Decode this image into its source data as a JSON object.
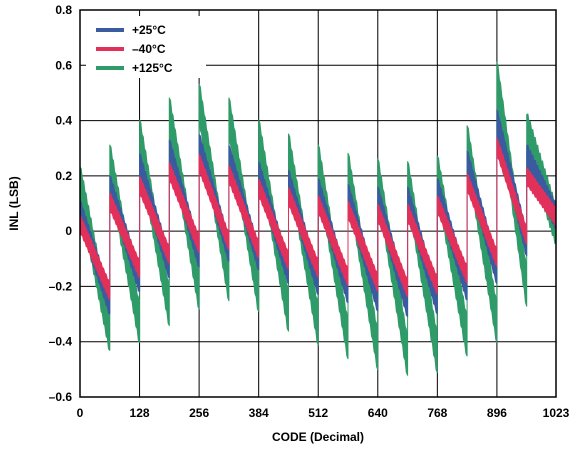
{
  "chart_data": {
    "type": "line",
    "title": "",
    "xlabel": "CODE (Decimal)",
    "ylabel": "INL (LSB)",
    "xlim": [
      0,
      1023
    ],
    "ylim": [
      -0.6,
      0.8
    ],
    "x_ticks": [
      0,
      128,
      256,
      384,
      512,
      640,
      768,
      896,
      1023
    ],
    "y_ticks": [
      -0.6,
      -0.4,
      -0.2,
      0,
      0.2,
      0.4,
      0.6,
      0.8
    ],
    "y_tick_labels": [
      "–0.6",
      "–0.4",
      "–0.2",
      "0",
      "0.2",
      "0.4",
      "0.6",
      "0.8"
    ],
    "grid": true,
    "legend_position": "top-left",
    "segment_codes": [
      0,
      64,
      128,
      192,
      256,
      320,
      384,
      448,
      512,
      576,
      640,
      704,
      768,
      832,
      896,
      960,
      1023
    ],
    "series": [
      {
        "name": "+125°C",
        "color": "#2e9b68",
        "band": 0.07,
        "tops": [
          0.17,
          0.25,
          0.34,
          0.42,
          0.47,
          0.42,
          0.34,
          0.29,
          0.25,
          0.22,
          0.2,
          0.19,
          0.21,
          0.32,
          0.55,
          0.36
        ],
        "bottoms": [
          -0.37,
          -0.34,
          -0.28,
          -0.22,
          -0.19,
          -0.23,
          -0.3,
          -0.35,
          -0.4,
          -0.44,
          -0.46,
          -0.45,
          -0.39,
          -0.34,
          -0.21,
          0.02
        ]
      },
      {
        "name": "+25°C",
        "color": "#3a5ba0",
        "band": 0.045,
        "tops": [
          0.07,
          0.16,
          0.24,
          0.29,
          0.31,
          0.27,
          0.21,
          0.18,
          0.15,
          0.13,
          0.12,
          0.12,
          0.15,
          0.25,
          0.4,
          0.27
        ],
        "bottoms": [
          -0.26,
          -0.18,
          -0.13,
          -0.09,
          -0.07,
          -0.1,
          -0.15,
          -0.19,
          -0.22,
          -0.25,
          -0.27,
          -0.26,
          -0.21,
          -0.15,
          -0.05,
          0.05
        ]
      },
      {
        "name": "–40°C",
        "color": "#e1305a",
        "band": 0.03,
        "tops": [
          0.03,
          0.11,
          0.17,
          0.22,
          0.25,
          0.21,
          0.16,
          0.13,
          0.1,
          0.08,
          0.07,
          0.07,
          0.1,
          0.18,
          0.31,
          0.2
        ],
        "bottoms": [
          -0.22,
          -0.14,
          -0.09,
          -0.05,
          -0.04,
          -0.07,
          -0.11,
          -0.14,
          -0.17,
          -0.19,
          -0.21,
          -0.2,
          -0.16,
          -0.1,
          -0.02,
          0.05
        ]
      }
    ],
    "legend": [
      {
        "name": "+25°C",
        "color": "#3a5ba0"
      },
      {
        "name": "–40°C",
        "color": "#e1305a"
      },
      {
        "name": "+125°C",
        "color": "#2e9b68"
      }
    ]
  }
}
